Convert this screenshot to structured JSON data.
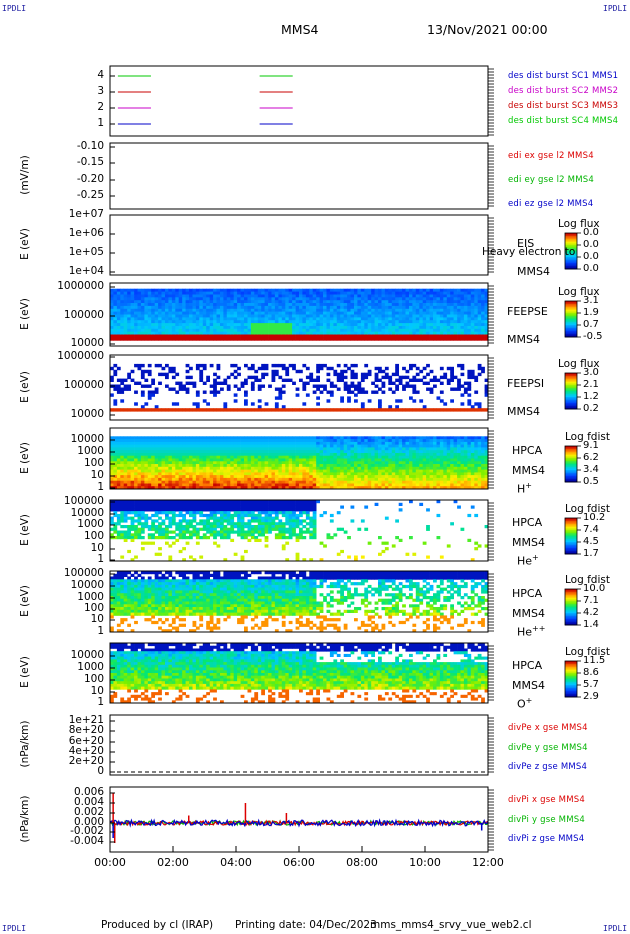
{
  "header": {
    "corner_label": "IPDLI",
    "spacecraft": "MMS4",
    "datetime": "13/Nov/2021 00:00"
  },
  "footer": {
    "produced_by": "Produced by cl (IRAP)",
    "printing_date": "Printing date: 04/Dec/2023",
    "filename": "mms_mms4_srvy_vue_web2.cl"
  },
  "x_axis": {
    "ticks": [
      "00:00",
      "02:00",
      "04:00",
      "06:00",
      "08:00",
      "10:00",
      "12:00"
    ],
    "range_hours": [
      0,
      12
    ]
  },
  "panels": [
    {
      "id": "burst",
      "ylabel": "",
      "yticks": [
        "4",
        "3",
        "2",
        "1"
      ],
      "legend": [
        {
          "text": "des dist burst SC1 MMS1",
          "color": "#0000c8"
        },
        {
          "text": "des dist burst SC2 MMS2",
          "color": "#c800c8"
        },
        {
          "text": "des dist burst SC3 MMS3",
          "color": "#c80000"
        },
        {
          "text": "des dist burst SC4 MMS4",
          "color": "#00c800"
        }
      ]
    },
    {
      "id": "edi",
      "ylabel": "(mV/m)",
      "yticks": [
        "-0.10",
        "-0.15",
        "-0.20",
        "-0.25"
      ],
      "legend": [
        {
          "text": "edi ex gse l2 MMS4",
          "color": "#dc0000"
        },
        {
          "text": "edi ey gse l2 MMS4",
          "color": "#00b400"
        },
        {
          "text": "edi ez gse l2 MMS4",
          "color": "#0000c8"
        }
      ]
    },
    {
      "id": "eis",
      "ylabel": "E (eV)",
      "yticks": [
        "1e+07",
        "1e+06",
        "1e+05",
        "1e+04"
      ],
      "instrument": [
        "EIS",
        "MMS4"
      ],
      "overlay": "Heavy electron to",
      "cbar_title": "Log flux",
      "cbar_values": [
        "0.0",
        "0.0",
        "0.0",
        "0.0"
      ]
    },
    {
      "id": "feepse",
      "ylabel": "E (eV)",
      "yticks": [
        "1000000",
        "100000",
        "10000"
      ],
      "instrument": [
        "FEEPSE",
        "MMS4"
      ],
      "cbar_title": "Log flux",
      "cbar_values": [
        "3.1",
        "1.9",
        "0.7",
        "-0.5"
      ]
    },
    {
      "id": "feepsi",
      "ylabel": "E (eV)",
      "yticks": [
        "1000000",
        "100000",
        "10000"
      ],
      "instrument": [
        "FEEPSI",
        "MMS4"
      ],
      "cbar_title": "Log flux",
      "cbar_values": [
        "3.0",
        "2.1",
        "1.2",
        "0.2"
      ]
    },
    {
      "id": "hpca_h",
      "ylabel": "E (eV)",
      "yticks": [
        "10000",
        "1000",
        "100",
        "10",
        "1"
      ],
      "instrument": [
        "HPCA",
        "MMS4"
      ],
      "species": "H",
      "charge": "+",
      "cbar_title": "Log fdist",
      "cbar_values": [
        "9.1",
        "6.2",
        "3.4",
        "0.5"
      ]
    },
    {
      "id": "hpca_he",
      "ylabel": "E (eV)",
      "yticks": [
        "100000",
        "10000",
        "1000",
        "100",
        "10",
        "1"
      ],
      "instrument": [
        "HPCA",
        "MMS4"
      ],
      "species": "He",
      "charge": "+",
      "cbar_title": "Log fdist",
      "cbar_values": [
        "10.2",
        "7.4",
        "4.5",
        "1.7"
      ]
    },
    {
      "id": "hpca_he2",
      "ylabel": "E (eV)",
      "yticks": [
        "100000",
        "10000",
        "1000",
        "100",
        "10",
        "1"
      ],
      "instrument": [
        "HPCA",
        "MMS4"
      ],
      "species": "He",
      "charge": "++",
      "cbar_title": "Log fdist",
      "cbar_values": [
        "10.0",
        "7.1",
        "4.2",
        "1.4"
      ]
    },
    {
      "id": "hpca_o",
      "ylabel": "E (eV)",
      "yticks": [
        "10000",
        "1000",
        "100",
        "10",
        "1"
      ],
      "instrument": [
        "HPCA",
        "MMS4"
      ],
      "species": "O",
      "charge": "+",
      "cbar_title": "Log fdist",
      "cbar_values": [
        "11.5",
        "8.6",
        "5.7",
        "2.9"
      ]
    },
    {
      "id": "divpe",
      "ylabel": "(nPa/km)",
      "yticks": [
        "1e+21",
        "8e+20",
        "6e+20",
        "4e+20",
        "2e+20",
        "0"
      ],
      "legend": [
        {
          "text": "divPe x gse MMS4",
          "color": "#dc0000"
        },
        {
          "text": "divPe y gse MMS4",
          "color": "#00b400"
        },
        {
          "text": "divPe z gse MMS4",
          "color": "#0000c8"
        }
      ]
    },
    {
      "id": "divpi",
      "ylabel": "(nPa/km)",
      "yticks": [
        "0.006",
        "0.004",
        "0.002",
        "0.000",
        "-0.002",
        "-0.004"
      ],
      "legend": [
        {
          "text": "divPi x gse MMS4",
          "color": "#dc0000"
        },
        {
          "text": "divPi y gse MMS4",
          "color": "#00b400"
        },
        {
          "text": "divPi z gse MMS4",
          "color": "#0000c8"
        }
      ]
    }
  ],
  "chart_data": {
    "type": "heatmap",
    "title": "MMS4 13/Nov/2021 00:00",
    "x_unit": "UT hours",
    "xlim": [
      0,
      12
    ],
    "burst_intervals": [
      {
        "series": "des dist burst SC1 MMS1",
        "level": 1,
        "start": 0.25,
        "end": 1.3
      },
      {
        "series": "des dist burst SC1 MMS1",
        "level": 1,
        "start": 4.75,
        "end": 5.8
      },
      {
        "series": "des dist burst SC2 MMS2",
        "level": 2,
        "start": 0.25,
        "end": 1.3
      },
      {
        "series": "des dist burst SC2 MMS2",
        "level": 2,
        "start": 4.75,
        "end": 5.8
      },
      {
        "series": "des dist burst SC3 MMS3",
        "level": 3,
        "start": 0.25,
        "end": 1.3
      },
      {
        "series": "des dist burst SC3 MMS3",
        "level": 3,
        "start": 4.75,
        "end": 5.8
      },
      {
        "series": "des dist burst SC4 MMS4",
        "level": 4,
        "start": 0.25,
        "end": 1.3
      },
      {
        "series": "des dist burst SC4 MMS4",
        "level": 4,
        "start": 4.75,
        "end": 5.8
      }
    ],
    "divpi_spikes": [
      {
        "series": "divPi x gse MMS4",
        "x": 0.1,
        "y": 0.006
      },
      {
        "series": "divPi x gse MMS4",
        "x": 0.15,
        "y": -0.004
      },
      {
        "series": "divPi x gse MMS4",
        "x": 2.5,
        "y": 0.0015
      },
      {
        "series": "divPi x gse MMS4",
        "x": 4.3,
        "y": 0.004
      },
      {
        "series": "divPi x gse MMS4",
        "x": 5.6,
        "y": 0.002
      },
      {
        "series": "divPi z gse MMS4",
        "x": 0.1,
        "y": -0.003
      },
      {
        "series": "divPi z gse MMS4",
        "x": 11.8,
        "y": -0.0015
      }
    ],
    "plasma_boundary_time": 6.5
  },
  "colors": {
    "frame": "#000000",
    "label_blue": "#1a1aa0"
  }
}
